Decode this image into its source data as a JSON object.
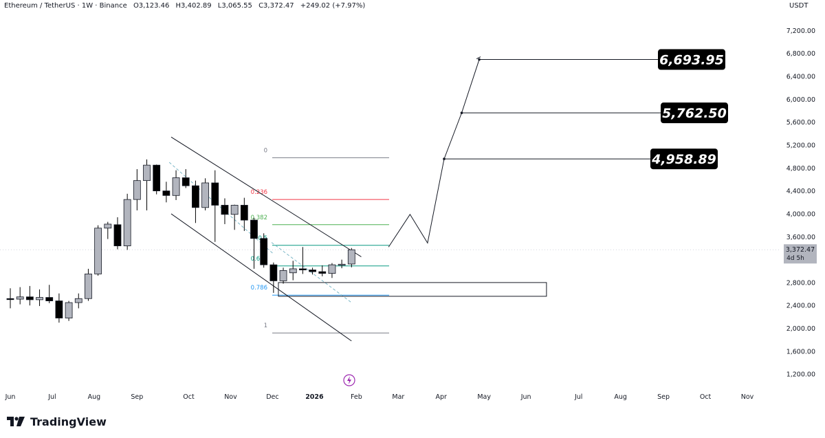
{
  "header": {
    "symbol": "Ethereum / TetherUS · 1W · Binance",
    "open": "O3,123.46",
    "high": "H3,402.89",
    "low": "L3,065.55",
    "close": "C3,372.47",
    "change": "+249.02 (+7.97%)"
  },
  "currency": "USDT",
  "brand": "TradingView",
  "price_tag": {
    "value": "3,372.47",
    "countdown": "4d 5h"
  },
  "chart_data": {
    "type": "candlestick",
    "ylim": [
      900,
      7500
    ],
    "y_ticks": [
      "7,200.00",
      "6,800.00",
      "6,400.00",
      "6,000.00",
      "5,600.00",
      "5,200.00",
      "4,800.00",
      "4,400.00",
      "4,000.00",
      "3,600.00",
      "2,800.00",
      "2,400.00",
      "2,000.00",
      "1,600.00",
      "1,200.00"
    ],
    "y_tick_values": [
      7200,
      6800,
      6400,
      6000,
      5600,
      5200,
      4800,
      4400,
      4000,
      3600,
      2800,
      2400,
      2000,
      1600,
      1200
    ],
    "x_ticks": [
      "Jun",
      "Jul",
      "Aug",
      "Sep",
      "Oct",
      "Nov",
      "Dec",
      "2026",
      "Feb",
      "Mar",
      "Apr",
      "May",
      "Jun",
      "Jul",
      "Aug",
      "Sep",
      "Oct",
      "Nov"
    ],
    "x_tick_weeks": [
      0,
      4.3,
      8.6,
      13,
      18.3,
      22.6,
      26.9,
      31.2,
      35.5,
      39.8,
      44.2,
      48.6,
      52.9,
      58.3,
      62.6,
      67.0,
      71.3,
      75.6
    ],
    "candles": [
      {
        "w": 0,
        "o": 2520,
        "h": 2700,
        "l": 2350,
        "c": 2510
      },
      {
        "w": 1,
        "o": 2510,
        "h": 2720,
        "l": 2420,
        "c": 2550
      },
      {
        "w": 2,
        "o": 2550,
        "h": 2740,
        "l": 2400,
        "c": 2500
      },
      {
        "w": 3,
        "o": 2500,
        "h": 2680,
        "l": 2390,
        "c": 2540
      },
      {
        "w": 4,
        "o": 2540,
        "h": 2760,
        "l": 2440,
        "c": 2480
      },
      {
        "w": 5,
        "o": 2480,
        "h": 2610,
        "l": 2100,
        "c": 2180
      },
      {
        "w": 6,
        "o": 2180,
        "h": 2480,
        "l": 2130,
        "c": 2450
      },
      {
        "w": 7,
        "o": 2450,
        "h": 2610,
        "l": 2350,
        "c": 2520
      },
      {
        "w": 8,
        "o": 2520,
        "h": 3040,
        "l": 2480,
        "c": 2950
      },
      {
        "w": 9,
        "o": 2950,
        "h": 3800,
        "l": 2920,
        "c": 3750
      },
      {
        "w": 10,
        "o": 3750,
        "h": 3860,
        "l": 3560,
        "c": 3820
      },
      {
        "w": 11,
        "o": 3810,
        "h": 3940,
        "l": 3380,
        "c": 3440
      },
      {
        "w": 12,
        "o": 3440,
        "h": 4350,
        "l": 3370,
        "c": 4250
      },
      {
        "w": 13,
        "o": 4250,
        "h": 4780,
        "l": 4060,
        "c": 4580
      },
      {
        "w": 14,
        "o": 4580,
        "h": 4950,
        "l": 4060,
        "c": 4850
      },
      {
        "w": 15,
        "o": 4850,
        "h": 4860,
        "l": 4340,
        "c": 4400
      },
      {
        "w": 16,
        "o": 4400,
        "h": 4560,
        "l": 4200,
        "c": 4320
      },
      {
        "w": 17,
        "o": 4320,
        "h": 4760,
        "l": 4240,
        "c": 4630
      },
      {
        "w": 18,
        "o": 4630,
        "h": 4780,
        "l": 4450,
        "c": 4490
      },
      {
        "w": 19,
        "o": 4490,
        "h": 4580,
        "l": 3840,
        "c": 4110
      },
      {
        "w": 20,
        "o": 4110,
        "h": 4620,
        "l": 4060,
        "c": 4540
      },
      {
        "w": 21,
        "o": 4540,
        "h": 4760,
        "l": 3510,
        "c": 4150
      },
      {
        "w": 22,
        "o": 4150,
        "h": 4270,
        "l": 3820,
        "c": 3990
      },
      {
        "w": 23,
        "o": 3990,
        "h": 4160,
        "l": 3720,
        "c": 4150
      },
      {
        "w": 24,
        "o": 4150,
        "h": 4280,
        "l": 3700,
        "c": 3890
      },
      {
        "w": 25,
        "o": 3890,
        "h": 3930,
        "l": 3040,
        "c": 3570
      },
      {
        "w": 26,
        "o": 3570,
        "h": 3660,
        "l": 3060,
        "c": 3110
      },
      {
        "w": 27,
        "o": 3110,
        "h": 3150,
        "l": 2620,
        "c": 2830
      },
      {
        "w": 28,
        "o": 2830,
        "h": 3060,
        "l": 2780,
        "c": 3010
      },
      {
        "w": 29,
        "o": 2970,
        "h": 3180,
        "l": 2840,
        "c": 3040
      },
      {
        "w": 30,
        "o": 3040,
        "h": 3420,
        "l": 2950,
        "c": 3020
      },
      {
        "w": 31,
        "o": 3020,
        "h": 3060,
        "l": 2940,
        "c": 2990
      },
      {
        "w": 32,
        "o": 2990,
        "h": 3100,
        "l": 2910,
        "c": 2960
      },
      {
        "w": 33,
        "o": 2960,
        "h": 3140,
        "l": 2880,
        "c": 3110
      },
      {
        "w": 34,
        "o": 3110,
        "h": 3200,
        "l": 3050,
        "c": 3120
      },
      {
        "w": 35,
        "o": 3123.46,
        "h": 3402.89,
        "l": 3065.55,
        "c": 3372.47
      }
    ],
    "fib_levels": [
      {
        "label": "0",
        "value": 4980,
        "color": "#787b86"
      },
      {
        "label": "0.236",
        "value": 4250,
        "color": "#f23645"
      },
      {
        "label": "0.382",
        "value": 3810,
        "color": "#4caf50"
      },
      {
        "label": "0.5",
        "value": 3450,
        "color": "#089981"
      },
      {
        "label": "0.618",
        "value": 3090,
        "color": "#089981"
      },
      {
        "label": "0.786",
        "value": 2580,
        "color": "#2196f3"
      },
      {
        "label": "1",
        "value": 1920,
        "color": "#787b86"
      }
    ],
    "projection_path": [
      {
        "w": 38.8,
        "v": 3420
      },
      {
        "w": 41.0,
        "v": 3990
      },
      {
        "w": 42.8,
        "v": 3490
      },
      {
        "w": 44.5,
        "v": 4958.89
      },
      {
        "w": 46.3,
        "v": 5762.5
      },
      {
        "w": 48.1,
        "v": 6693.95
      }
    ],
    "targets": [
      "6,693.95",
      "5,762.50",
      "4,958.89"
    ],
    "target_values": [
      6693.95,
      5762.5,
      4958.89
    ],
    "channel": {
      "upper": [
        {
          "w": 16.5,
          "v": 5340
        },
        {
          "w": 36.0,
          "v": 3250
        }
      ],
      "lower": [
        {
          "w": 16.5,
          "v": 4000
        },
        {
          "w": 35.0,
          "v": 1780
        }
      ]
    },
    "zone": {
      "w_start": 27.5,
      "w_end": 55.0,
      "v_top": 2800,
      "v_bottom": 2560
    },
    "colors": {
      "up_body": "#b2b5be",
      "down_body": "#000000",
      "wick": "#000000",
      "grid": "#f0f3fa",
      "dashed": "#7ab6c6"
    }
  }
}
